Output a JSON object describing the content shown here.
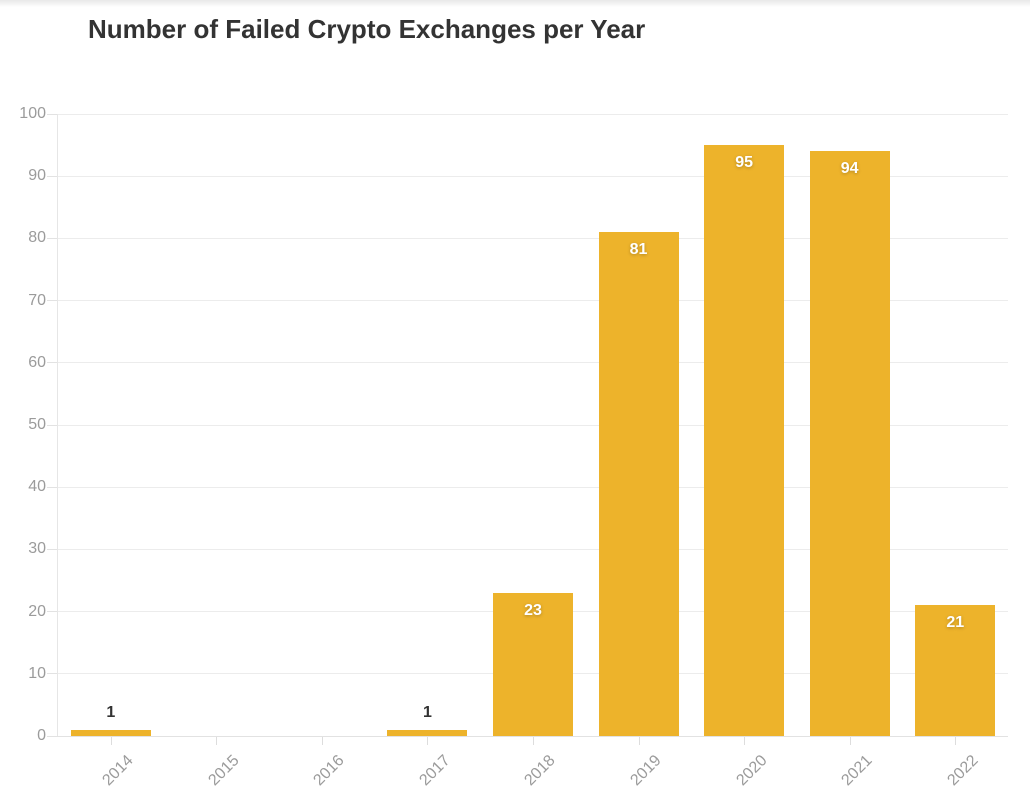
{
  "page": {
    "title": "Number of Failed Crypto Exchanges per Year"
  },
  "chart_data": {
    "type": "bar",
    "title": "Number of Failed Crypto Exchanges per Year",
    "categories": [
      "2014",
      "2015",
      "2016",
      "2017",
      "2018",
      "2019",
      "2020",
      "2021",
      "2022"
    ],
    "values": [
      1,
      0,
      0,
      1,
      23,
      81,
      95,
      94,
      21
    ],
    "xlabel": "",
    "ylabel": "",
    "ylim": [
      0,
      100
    ],
    "ytick_step": 10,
    "ytick_labels": [
      "0",
      "10",
      "20",
      "30",
      "40",
      "50",
      "60",
      "70",
      "80",
      "90",
      "100"
    ],
    "grid": true,
    "legend": "none",
    "colors": {
      "bar": "#edb32b",
      "grid": "#ececec",
      "axis": "#e2e2e2",
      "axis_text": "#9b9b9b",
      "title_text": "#333333",
      "label_inside": "#ffffff",
      "label_outside": "#333333",
      "background": "#ffffff"
    }
  }
}
